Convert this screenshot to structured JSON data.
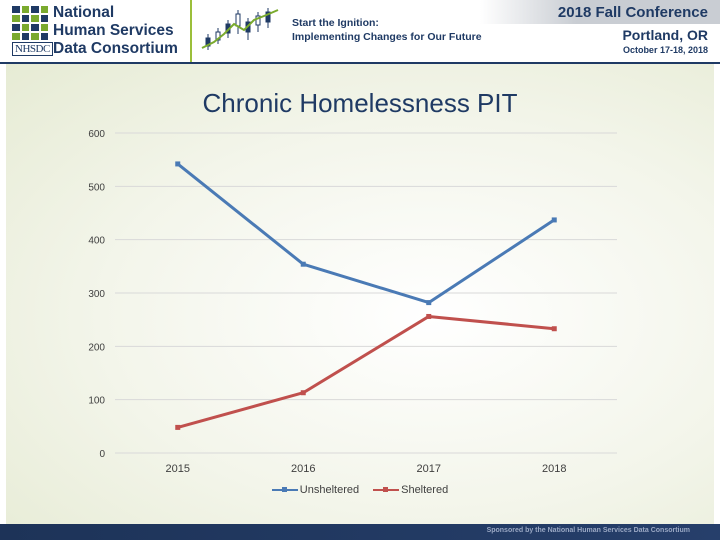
{
  "header": {
    "logo_lines": [
      "National",
      "Human Services",
      "Data Consortium"
    ],
    "logo_abbr": "NHSDC",
    "tagline_lines": [
      "Start the Ignition:",
      "Implementing Changes for Our Future"
    ],
    "conference_title": "2018 Fall Conference",
    "conference_city": "Portland, OR",
    "conference_dates": "October 17-18, 2018"
  },
  "footer": {
    "text": "Sponsored by the National Human Services Data Consortium"
  },
  "colors": {
    "navy": "#1f3a64",
    "green": "#7aaa2e",
    "unsheltered": "#4a7ab5",
    "sheltered": "#c0504d",
    "grid": "#d9d9d9"
  },
  "chart_data": {
    "type": "line",
    "title": "Chronic Homelessness PIT",
    "categories": [
      "2015",
      "2016",
      "2017",
      "2018"
    ],
    "series": [
      {
        "name": "Unsheltered",
        "values": [
          542,
          354,
          282,
          437
        ]
      },
      {
        "name": "Sheltered",
        "values": [
          48,
          113,
          256,
          233
        ]
      }
    ],
    "ylim": [
      0,
      600
    ],
    "yticks": [
      0,
      100,
      200,
      300,
      400,
      500,
      600
    ],
    "grid": true,
    "legend": "bottom"
  }
}
